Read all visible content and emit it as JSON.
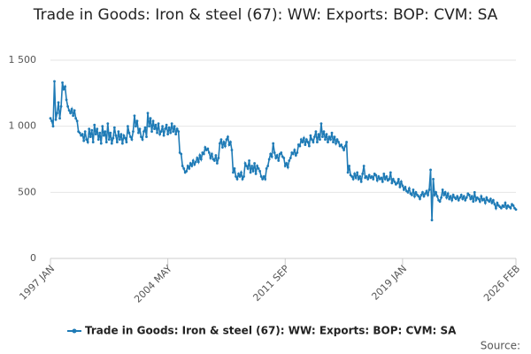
{
  "chart_data": {
    "type": "line",
    "title": "Trade in Goods: Iron & steel (67): WW: Exports: BOP: CVM: SA",
    "source": "Source:",
    "categories": [
      "1997 JAN",
      null,
      null,
      null,
      null,
      null,
      null,
      null,
      null,
      null,
      null,
      null,
      null,
      null,
      null,
      null,
      null,
      null,
      null,
      null,
      null,
      null,
      null,
      null,
      null,
      null,
      null,
      null,
      null,
      null,
      null,
      null,
      null,
      null,
      null,
      null,
      null,
      null,
      null,
      null,
      null,
      null,
      null,
      null,
      null,
      null,
      null,
      null,
      null,
      null,
      null,
      null,
      null,
      null,
      null,
      null,
      null,
      null,
      null,
      null,
      null,
      null,
      null,
      null,
      null,
      null,
      null,
      null,
      null,
      null,
      null,
      null,
      null,
      null,
      null,
      null,
      null,
      null,
      null,
      null,
      null,
      null,
      null,
      null,
      null,
      null,
      null,
      null,
      "2004 MAY",
      null,
      null,
      null,
      null,
      null,
      null,
      null,
      null,
      null,
      null,
      null,
      null,
      null,
      null,
      null,
      null,
      null,
      null,
      null,
      null,
      null,
      null,
      null,
      null,
      null,
      null,
      null,
      null,
      null,
      null,
      null,
      null,
      null,
      null,
      null,
      null,
      null,
      null,
      null,
      null,
      null,
      null,
      null,
      null,
      null,
      null,
      null,
      null,
      null,
      null,
      null,
      null,
      null,
      null,
      null,
      null,
      null,
      null,
      null,
      null,
      null,
      null,
      null,
      null,
      null,
      null,
      null,
      null,
      null,
      null,
      null,
      null,
      null,
      null,
      null,
      null,
      null,
      null,
      null,
      null,
      null,
      null,
      null,
      null,
      null,
      null,
      null,
      "2011 SEP",
      null,
      null,
      null,
      null,
      null,
      null,
      null,
      null,
      null,
      null,
      null,
      null,
      null,
      null,
      null,
      null,
      null,
      null,
      null,
      null,
      null,
      null,
      null,
      null,
      null,
      null,
      null,
      null,
      null,
      null,
      null,
      null,
      null,
      null,
      null,
      null,
      null,
      null,
      null,
      null,
      null,
      null,
      null,
      null,
      null,
      null,
      null,
      null,
      null,
      null,
      null,
      null,
      null,
      null,
      null,
      null,
      null,
      null,
      null,
      null,
      null,
      null,
      null,
      null,
      null,
      null,
      null,
      null,
      null,
      null,
      null,
      null,
      null,
      null,
      null,
      null,
      null,
      null,
      null,
      null,
      null,
      null,
      null,
      null,
      null,
      null,
      null,
      "2019 JAN",
      null,
      null,
      null,
      null,
      null,
      null,
      null,
      null,
      null,
      null,
      null,
      null,
      null,
      null,
      null,
      null,
      null,
      null,
      null,
      null,
      null,
      null,
      null,
      null,
      null,
      null,
      null,
      null,
      null,
      null,
      null,
      null,
      null,
      null,
      null,
      null,
      null,
      null,
      null,
      null,
      null,
      null,
      null,
      null,
      null,
      null,
      null,
      null,
      null,
      null,
      null,
      null,
      null,
      null,
      null,
      null,
      null,
      null,
      null,
      null,
      null,
      null,
      null,
      null,
      null,
      null,
      null,
      null,
      null,
      null,
      null,
      null,
      null,
      null,
      null,
      null,
      null,
      null,
      null,
      null,
      null,
      null,
      null,
      null,
      "2026 FEB"
    ],
    "series": [
      {
        "name": "Trade in Goods: Iron & steel (67): WW: Exports: BOP: CVM: SA",
        "color": "#1f7bb6",
        "values": [
          1060,
          1040,
          1000,
          1340,
          1050,
          1100,
          1180,
          1060,
          1150,
          1330,
          1280,
          1300,
          1200,
          1150,
          1120,
          1100,
          1130,
          1080,
          1120,
          1060,
          1040,
          960,
          950,
          930,
          940,
          890,
          960,
          900,
          880,
          980,
          920,
          970,
          880,
          1010,
          940,
          980,
          900,
          950,
          870,
          1000,
          930,
          960,
          880,
          1020,
          900,
          950,
          870,
          910,
          990,
          930,
          880,
          960,
          900,
          940,
          870,
          930,
          910,
          880,
          1000,
          950,
          920,
          900,
          960,
          1080,
          1000,
          1040,
          950,
          980,
          920,
          900,
          960,
          990,
          920,
          1100,
          1000,
          1060,
          960,
          1040,
          980,
          1010,
          950,
          1020,
          940,
          960,
          1000,
          930,
          980,
          1010,
          940,
          990,
          950,
          1020,
          960,
          1000,
          940,
          980,
          960,
          800,
          790,
          700,
          680,
          650,
          660,
          700,
          680,
          720,
          700,
          740,
          710,
          730,
          760,
          730,
          780,
          750,
          800,
          790,
          840,
          820,
          830,
          800,
          760,
          790,
          750,
          740,
          780,
          720,
          760,
          870,
          900,
          840,
          880,
          850,
          900,
          920,
          860,
          880,
          820,
          650,
          680,
          620,
          600,
          640,
          620,
          650,
          600,
          620,
          720,
          700,
          680,
          740,
          650,
          700,
          660,
          720,
          640,
          700,
          680,
          660,
          620,
          600,
          620,
          600,
          680,
          700,
          750,
          790,
          770,
          870,
          800,
          760,
          780,
          740,
          790,
          800,
          770,
          760,
          700,
          720,
          690,
          740,
          760,
          800,
          790,
          820,
          780,
          800,
          860,
          850,
          900,
          880,
          910,
          860,
          900,
          880,
          850,
          930,
          900,
          880,
          920,
          960,
          880,
          940,
          900,
          1020,
          920,
          960,
          900,
          940,
          880,
          920,
          900,
          950,
          880,
          920,
          870,
          900,
          880,
          850,
          860,
          840,
          820,
          850,
          880,
          650,
          700,
          630,
          620,
          600,
          640,
          610,
          650,
          600,
          620,
          580,
          640,
          700,
          610,
          620,
          600,
          630,
          610,
          620,
          600,
          640,
          630,
          590,
          620,
          600,
          610,
          580,
          640,
          600,
          620,
          590,
          600,
          650,
          570,
          600,
          580,
          560,
          570,
          600,
          540,
          580,
          550,
          520,
          540,
          510,
          500,
          530,
          490,
          480,
          520,
          470,
          500,
          480,
          470,
          450,
          480,
          500,
          470,
          490,
          510,
          480,
          520,
          670,
          290,
          600,
          480,
          500,
          470,
          440,
          430,
          460,
          520,
          480,
          500,
          460,
          490,
          450,
          470,
          440,
          480,
          460,
          450,
          470,
          440,
          460,
          480,
          450,
          470,
          440,
          460,
          490,
          480,
          450,
          470,
          430,
          500,
          440,
          460,
          450,
          430,
          470,
          440,
          450,
          420,
          460,
          440,
          430,
          450,
          420,
          440,
          410,
          380,
          420,
          400,
          390,
          380,
          400,
          390,
          420,
          380,
          400,
          390,
          380,
          410,
          400,
          380,
          370
        ]
      }
    ],
    "ylim": [
      0,
      1500
    ],
    "yticks": [
      0,
      500,
      {
        "value": 1000,
        "label": "1 000"
      },
      {
        "value": 1500,
        "label": "1 500"
      }
    ],
    "grid": true
  }
}
